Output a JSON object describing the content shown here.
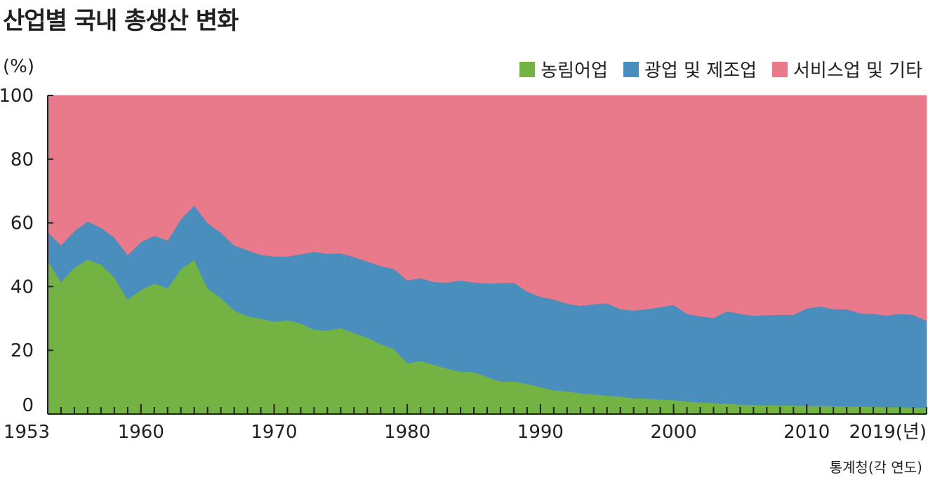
{
  "chart_data": {
    "type": "area",
    "stacked": true,
    "title": "산업별 국내 총생산 변화",
    "ylabel": "(%)",
    "x_end_label": "2019(년)",
    "source": "통계청(각 연도)",
    "ylim": [
      0,
      100
    ],
    "y_ticks": [
      "100",
      "80",
      "60",
      "40",
      "20",
      "0"
    ],
    "x_ticks": [
      "1953",
      "1960",
      "1970",
      "1980",
      "1990",
      "2000",
      "2010"
    ],
    "legend_position": "top-right",
    "x": [
      1953,
      1954,
      1955,
      1956,
      1957,
      1958,
      1959,
      1960,
      1961,
      1962,
      1963,
      1964,
      1965,
      1966,
      1967,
      1968,
      1969,
      1970,
      1971,
      1972,
      1973,
      1974,
      1975,
      1976,
      1977,
      1978,
      1979,
      1980,
      1981,
      1982,
      1983,
      1984,
      1985,
      1986,
      1987,
      1988,
      1989,
      1990,
      1991,
      1992,
      1993,
      1994,
      1995,
      1996,
      1997,
      1998,
      1999,
      2000,
      2001,
      2002,
      2003,
      2004,
      2005,
      2006,
      2007,
      2008,
      2009,
      2010,
      2011,
      2012,
      2013,
      2014,
      2015,
      2016,
      2017,
      2018,
      2019
    ],
    "series": [
      {
        "name": "농림어업",
        "color": "#72b343",
        "values": [
          48.2,
          41.5,
          46.0,
          48.5,
          47.0,
          43.0,
          36.0,
          39.0,
          41.0,
          39.5,
          45.5,
          48.5,
          39.5,
          36.5,
          32.5,
          30.8,
          30.0,
          29.0,
          29.5,
          28.5,
          26.5,
          26.3,
          27.0,
          25.5,
          24.0,
          22.0,
          20.5,
          16.0,
          16.7,
          15.5,
          14.3,
          13.3,
          13.2,
          11.7,
          10.2,
          10.3,
          9.5,
          8.5,
          7.5,
          7.2,
          6.5,
          6.2,
          5.8,
          5.5,
          5.0,
          4.9,
          4.6,
          4.4,
          4.0,
          3.7,
          3.5,
          3.3,
          3.0,
          2.9,
          2.8,
          2.7,
          2.7,
          2.6,
          2.6,
          2.5,
          2.4,
          2.4,
          2.3,
          2.2,
          2.2,
          2.1,
          2.0
        ]
      },
      {
        "name": "광업 및 제조업",
        "color": "#4a8ebe",
        "values": [
          9.0,
          11.5,
          11.5,
          12.0,
          11.5,
          12.5,
          14.0,
          15.0,
          15.0,
          15.0,
          15.7,
          17.0,
          20.5,
          20.5,
          20.5,
          20.7,
          20.0,
          20.5,
          20.0,
          21.7,
          24.5,
          24.0,
          23.5,
          23.8,
          23.9,
          24.5,
          25.1,
          26.0,
          26.0,
          26.0,
          27.0,
          28.7,
          28.1,
          29.3,
          31.0,
          31.0,
          29.0,
          28.3,
          28.5,
          27.5,
          27.5,
          28.3,
          29.0,
          27.5,
          27.5,
          28.1,
          29.0,
          29.9,
          27.5,
          27.0,
          26.7,
          29.0,
          28.5,
          28.0,
          28.3,
          28.5,
          28.5,
          30.6,
          31.2,
          30.5,
          30.5,
          29.3,
          29.2,
          28.8,
          29.3,
          29.1,
          27.3
        ]
      },
      {
        "name": "서비스업 및 기타",
        "color": "#e97a8b",
        "values": [
          42.8,
          47.0,
          42.5,
          39.5,
          41.5,
          44.5,
          50.0,
          46.0,
          44.0,
          45.5,
          38.8,
          34.5,
          40.0,
          43.0,
          47.0,
          48.5,
          50.0,
          50.5,
          50.5,
          49.8,
          49.0,
          49.7,
          49.5,
          50.7,
          52.1,
          53.5,
          54.4,
          58.0,
          57.3,
          58.5,
          58.7,
          58.0,
          58.7,
          59.0,
          58.8,
          58.7,
          61.5,
          63.2,
          64.0,
          65.3,
          66.0,
          65.5,
          65.2,
          67.0,
          67.5,
          67.0,
          66.4,
          65.7,
          68.5,
          69.3,
          69.8,
          67.7,
          68.5,
          69.1,
          68.9,
          68.8,
          68.8,
          66.8,
          66.2,
          67.0,
          67.1,
          68.3,
          68.5,
          69.0,
          68.5,
          68.8,
          70.7
        ]
      }
    ]
  }
}
